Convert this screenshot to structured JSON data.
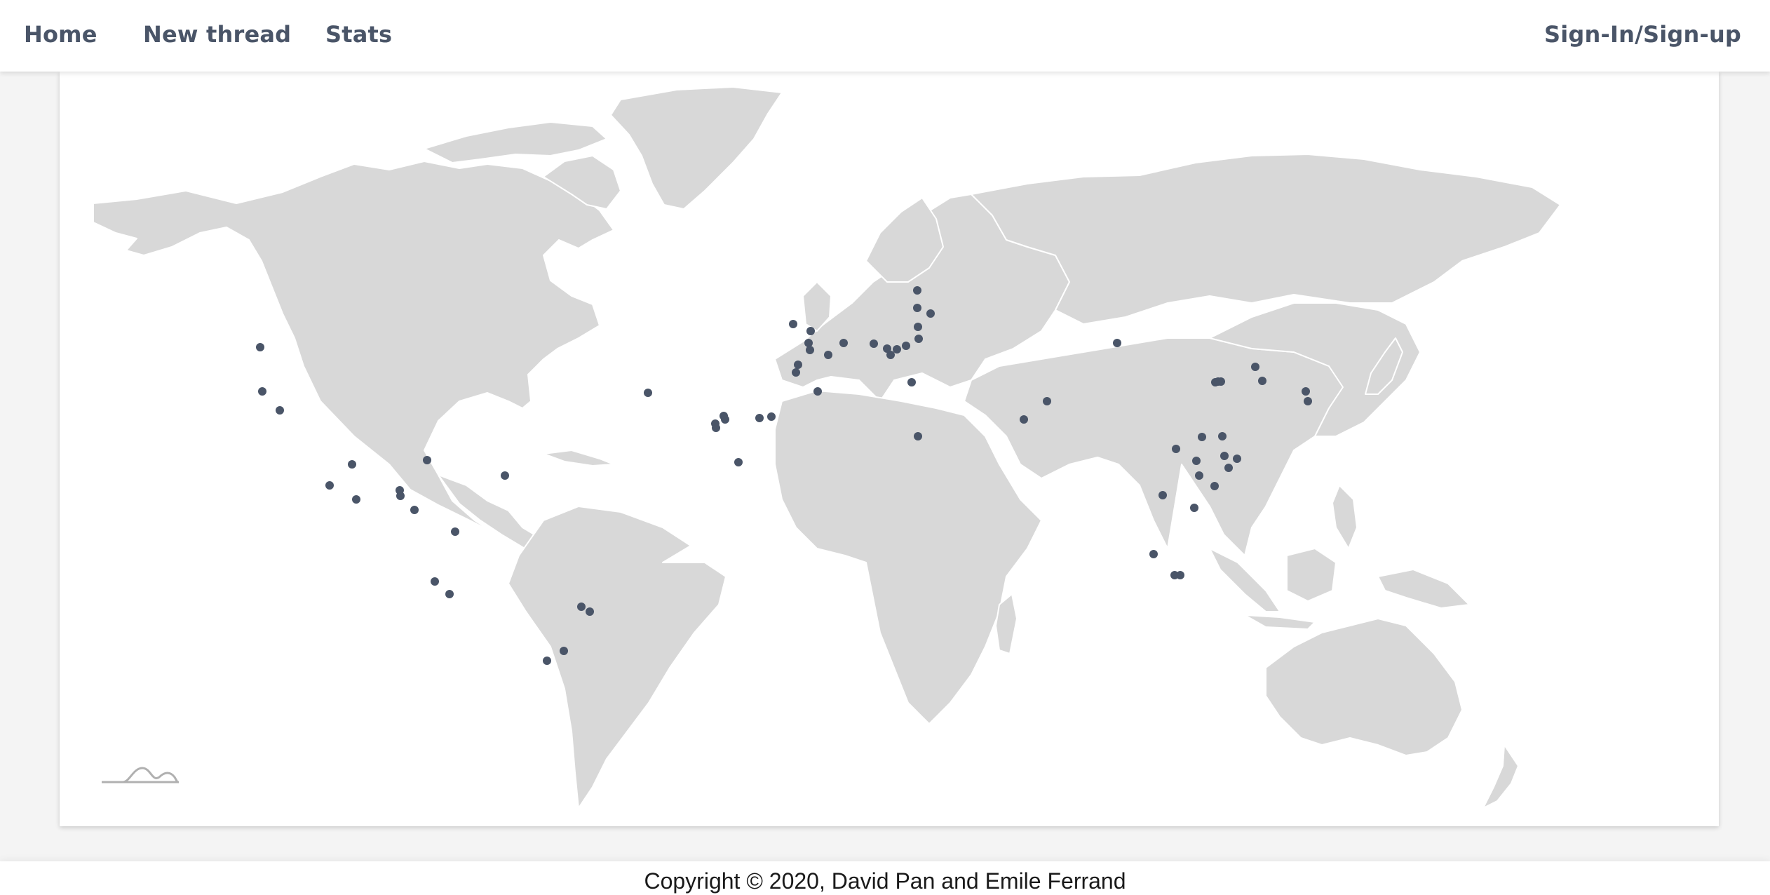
{
  "nav": {
    "home": "Home",
    "new_thread": "New thread",
    "stats": "Stats",
    "signin": "Sign-In/Sign-up"
  },
  "map": {
    "land_color": "#d8d8d8",
    "border_color": "#ffffff",
    "marker_color": "#4a5568",
    "logo_icon": "mapbox-style-wave-logo-icon",
    "marker_count": 71
  },
  "footer": {
    "copyright": "Copyright © 2020, David Pan and Emile Ferrand"
  }
}
